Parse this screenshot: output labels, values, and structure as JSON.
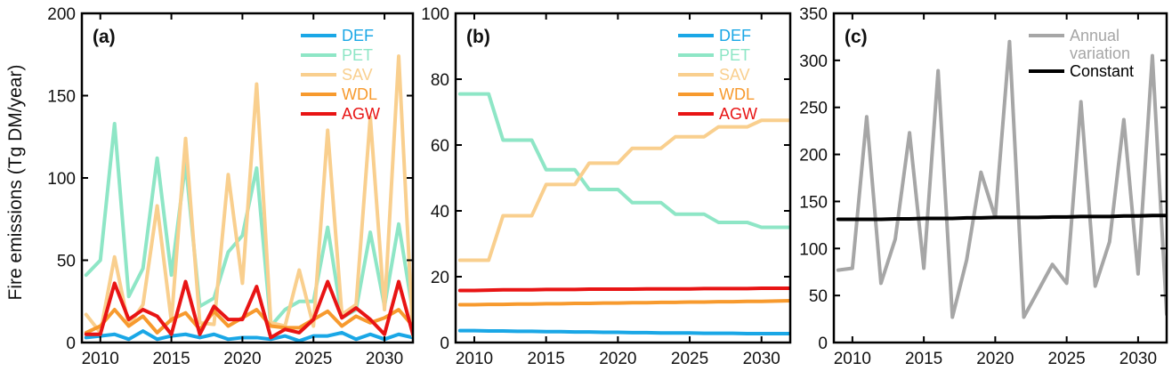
{
  "colors": {
    "DEF": "#1aa7e6",
    "PET": "#8ee6c6",
    "SAV": "#f9cf8e",
    "WDL": "#f79a2e",
    "AGW": "#e81414",
    "annual": "#a6a6a6",
    "constant": "#000000"
  },
  "chart_data": [
    {
      "type": "line",
      "panel_label": "(a)",
      "ylabel": "Fire emissions (Tg DM/year)",
      "xlim": [
        2008.7,
        2032
      ],
      "ylim": [
        0,
        200
      ],
      "xticks": [
        2010,
        2015,
        2020,
        2025,
        2030
      ],
      "yticks": [
        0,
        50,
        100,
        150,
        200
      ],
      "legend_position": "top-right",
      "x": [
        2009,
        2010,
        2011,
        2012,
        2013,
        2014,
        2015,
        2016,
        2017,
        2018,
        2019,
        2020,
        2021,
        2022,
        2023,
        2024,
        2025,
        2026,
        2027,
        2028,
        2029,
        2030,
        2031,
        2032
      ],
      "series": [
        {
          "name": "DEF",
          "values": [
            3,
            4,
            5,
            2,
            7,
            2,
            4,
            5,
            3,
            5,
            2,
            3,
            3,
            2,
            4,
            1,
            4,
            4,
            6,
            2,
            5,
            2,
            5,
            3
          ]
        },
        {
          "name": "PET",
          "values": [
            41,
            50,
            133,
            28,
            45,
            112,
            41,
            109,
            22,
            27,
            55,
            65,
            106,
            10,
            20,
            25,
            25,
            70,
            15,
            20,
            67,
            22,
            72,
            18
          ]
        },
        {
          "name": "SAV",
          "values": [
            17,
            6,
            52,
            10,
            23,
            83,
            13,
            124,
            12,
            11,
            102,
            36,
            157,
            12,
            10,
            44,
            10,
            129,
            17,
            23,
            137,
            20,
            174,
            4
          ]
        },
        {
          "name": "WDL",
          "values": [
            6,
            10,
            20,
            10,
            16,
            6,
            14,
            18,
            8,
            19,
            10,
            15,
            20,
            10,
            9,
            9,
            14,
            19,
            10,
            16,
            12,
            15,
            20,
            10
          ]
        },
        {
          "name": "AGW",
          "values": [
            5,
            5,
            36,
            14,
            20,
            16,
            5,
            37,
            5,
            22,
            14,
            14,
            34,
            3,
            8,
            6,
            14,
            37,
            15,
            21,
            14,
            5,
            37,
            5
          ]
        }
      ]
    },
    {
      "type": "line",
      "panel_label": "(b)",
      "xlim": [
        2008.7,
        2032
      ],
      "ylim": [
        0,
        100
      ],
      "xticks": [
        2010,
        2015,
        2020,
        2025,
        2030
      ],
      "yticks": [
        0,
        20,
        40,
        60,
        80,
        100
      ],
      "legend_position": "top-right",
      "x": [
        2009,
        2010,
        2011,
        2012,
        2013,
        2014,
        2015,
        2016,
        2017,
        2018,
        2019,
        2020,
        2021,
        2022,
        2023,
        2024,
        2025,
        2026,
        2027,
        2028,
        2029,
        2030,
        2031,
        2032
      ],
      "series": [
        {
          "name": "DEF",
          "values": [
            3.6,
            3.6,
            3.5,
            3.5,
            3.4,
            3.4,
            3.3,
            3.3,
            3.2,
            3.2,
            3.1,
            3.1,
            3.0,
            3.0,
            2.9,
            2.9,
            2.9,
            2.8,
            2.8,
            2.8,
            2.7,
            2.7,
            2.7,
            2.7
          ]
        },
        {
          "name": "PET",
          "values": [
            75.5,
            75.5,
            75.5,
            61.5,
            61.5,
            61.5,
            52.5,
            52.5,
            52.5,
            46.5,
            46.5,
            46.5,
            42.5,
            42.5,
            42.5,
            39,
            39,
            39,
            36.5,
            36.5,
            36.5,
            35,
            35,
            35
          ]
        },
        {
          "name": "SAV",
          "values": [
            25,
            25,
            25,
            38.5,
            38.5,
            38.5,
            48,
            48,
            48,
            54.5,
            54.5,
            54.5,
            59,
            59,
            59,
            62.5,
            62.5,
            62.5,
            65.5,
            65.5,
            65.5,
            67.5,
            67.5,
            67.5
          ]
        },
        {
          "name": "WDL",
          "values": [
            11.5,
            11.5,
            11.6,
            11.6,
            11.7,
            11.7,
            11.8,
            11.8,
            11.9,
            11.9,
            12.0,
            12.0,
            12.1,
            12.1,
            12.2,
            12.2,
            12.3,
            12.3,
            12.4,
            12.4,
            12.5,
            12.5,
            12.6,
            12.7
          ]
        },
        {
          "name": "AGW",
          "values": [
            15.8,
            15.8,
            15.9,
            16.0,
            16.0,
            16.0,
            16.1,
            16.1,
            16.1,
            16.2,
            16.2,
            16.2,
            16.2,
            16.3,
            16.3,
            16.3,
            16.3,
            16.4,
            16.4,
            16.4,
            16.4,
            16.5,
            16.5,
            16.5
          ]
        }
      ]
    },
    {
      "type": "line",
      "panel_label": "(c)",
      "xlim": [
        2008.7,
        2032
      ],
      "ylim": [
        0,
        350
      ],
      "xticks": [
        2010,
        2015,
        2020,
        2025,
        2030
      ],
      "yticks": [
        0,
        50,
        100,
        150,
        200,
        250,
        300,
        350
      ],
      "legend_position": "top-right",
      "x": [
        2009,
        2010,
        2011,
        2012,
        2013,
        2014,
        2015,
        2016,
        2017,
        2018,
        2019,
        2020,
        2021,
        2022,
        2023,
        2024,
        2025,
        2026,
        2027,
        2028,
        2029,
        2030,
        2031,
        2032
      ],
      "series": [
        {
          "name": "Annual variation",
          "values": [
            77,
            79,
            240,
            63,
            110,
            223,
            79,
            289,
            27,
            88,
            181,
            133,
            320,
            27,
            55,
            83,
            63,
            256,
            60,
            107,
            237,
            73,
            305,
            30
          ]
        },
        {
          "name": "Constant",
          "values": [
            131,
            131,
            131,
            131,
            131.5,
            131.5,
            132,
            132,
            132,
            132.5,
            132.5,
            133,
            133,
            133,
            133,
            133.5,
            133.5,
            134,
            134,
            134,
            134.5,
            134.5,
            135,
            135
          ]
        }
      ]
    }
  ]
}
